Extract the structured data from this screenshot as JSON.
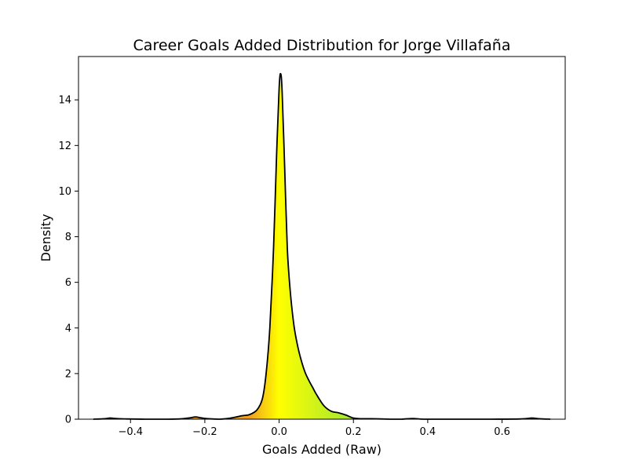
{
  "chart_data": {
    "type": "area",
    "title": "Career Goals Added Distribution for Jorge Villafaña",
    "xlabel": "Goals Added (Raw)",
    "ylabel": "Density",
    "xlim": [
      -0.54,
      0.77
    ],
    "ylim": [
      0,
      15.9
    ],
    "x_ticks": [
      -0.4,
      -0.2,
      0.0,
      0.2,
      0.4,
      0.6
    ],
    "x_tick_labels": [
      "−0.4",
      "−0.2",
      "0.0",
      "0.2",
      "0.4",
      "0.6"
    ],
    "y_ticks": [
      0,
      2,
      4,
      6,
      8,
      10,
      12,
      14
    ],
    "y_tick_labels": [
      "0",
      "2",
      "4",
      "6",
      "8",
      "10",
      "12",
      "14"
    ],
    "grid": false,
    "fill_gradient": {
      "negative_color": "#f0a020",
      "zero_color": "#ffff00",
      "positive_color": "#a8e830"
    },
    "line_color": "#000000",
    "series": [
      {
        "name": "density",
        "x": [
          -0.5,
          -0.47,
          -0.455,
          -0.44,
          -0.41,
          -0.36,
          -0.3,
          -0.26,
          -0.24,
          -0.225,
          -0.21,
          -0.19,
          -0.16,
          -0.13,
          -0.1,
          -0.08,
          -0.06,
          -0.045,
          -0.035,
          -0.025,
          -0.015,
          -0.007,
          0.0,
          0.004,
          0.008,
          0.015,
          0.022,
          0.03,
          0.04,
          0.05,
          0.06,
          0.07,
          0.08,
          0.09,
          0.1,
          0.12,
          0.14,
          0.16,
          0.18,
          0.2,
          0.22,
          0.25,
          0.3,
          0.33,
          0.36,
          0.39,
          0.45,
          0.55,
          0.65,
          0.68,
          0.7,
          0.73
        ],
        "y": [
          0.0,
          0.02,
          0.05,
          0.03,
          0.01,
          0.0,
          0.0,
          0.02,
          0.06,
          0.1,
          0.06,
          0.02,
          0.0,
          0.05,
          0.15,
          0.2,
          0.4,
          0.9,
          2.0,
          4.0,
          7.5,
          11.5,
          14.5,
          15.15,
          14.4,
          11.0,
          7.5,
          5.6,
          4.1,
          3.2,
          2.55,
          2.05,
          1.7,
          1.4,
          1.1,
          0.6,
          0.35,
          0.28,
          0.18,
          0.05,
          0.02,
          0.02,
          0.0,
          0.0,
          0.03,
          0.0,
          0.0,
          0.0,
          0.01,
          0.05,
          0.02,
          0.0
        ]
      }
    ]
  }
}
